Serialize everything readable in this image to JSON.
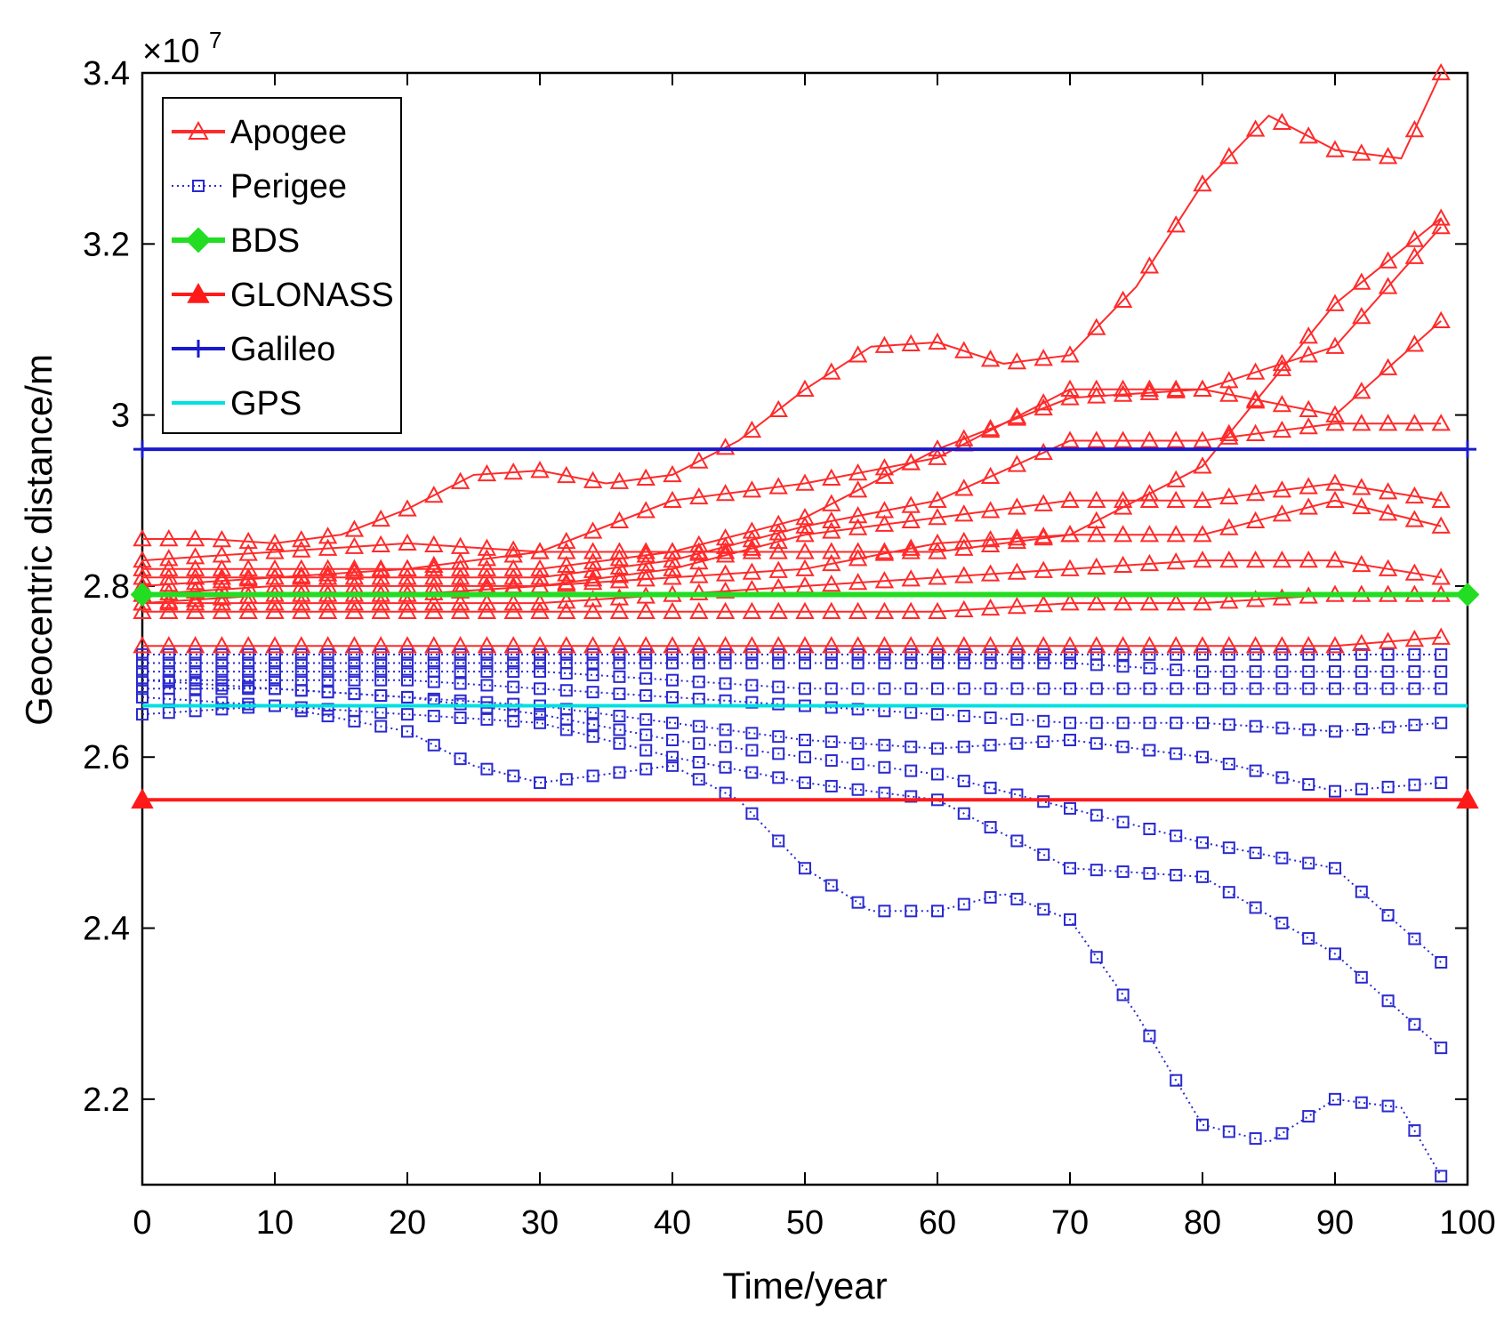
{
  "chart_data": {
    "type": "line",
    "title": "",
    "xlabel": "Time/year",
    "ylabel": "Geocentric distance/m",
    "exponent_label": "×10",
    "exponent_power": "7",
    "xlim": [
      0,
      100
    ],
    "ylim": [
      2.1,
      3.4
    ],
    "xticks": [
      0,
      10,
      20,
      30,
      40,
      50,
      60,
      70,
      80,
      90,
      100
    ],
    "yticks": [
      2.2,
      2.4,
      2.6,
      2.8,
      3,
      3.2,
      3.4
    ],
    "ytick_labels": [
      "2.2",
      "2.4",
      "2.6",
      "2.8",
      "3",
      "3.2",
      "3.4"
    ],
    "legend_position": "top-left",
    "legend": [
      {
        "label": "Apogee",
        "color": "#ff2a2a",
        "marker": "triangle-open",
        "style": "solid"
      },
      {
        "label": "Perigee",
        "color": "#2a2ad0",
        "marker": "square-open",
        "style": "dotted"
      },
      {
        "label": "BDS",
        "color": "#22dd22",
        "marker": "diamond",
        "style": "solid"
      },
      {
        "label": "GLONASS",
        "color": "#ff1a1a",
        "marker": "triangle",
        "style": "solid"
      },
      {
        "label": "Galileo",
        "color": "#1a1acc",
        "marker": "plus",
        "style": "solid"
      },
      {
        "label": "GPS",
        "color": "#00e0e0",
        "marker": "none",
        "style": "solid"
      }
    ],
    "reference_lines": [
      {
        "name": "Galileo",
        "y": 2.96,
        "color": "#1a1acc",
        "marker": "plus"
      },
      {
        "name": "BDS",
        "y": 2.79,
        "color": "#22dd22",
        "marker": "diamond"
      },
      {
        "name": "GLONASS",
        "y": 2.55,
        "color": "#ff1a1a",
        "marker": "triangle"
      },
      {
        "name": "GPS",
        "y": 2.66,
        "color": "#00e0e0",
        "marker": "none"
      }
    ],
    "apogee_series": [
      {
        "x": [
          0,
          5,
          10,
          15,
          20,
          25,
          30,
          35,
          40,
          45,
          50,
          55,
          60,
          65,
          70,
          75,
          80,
          85,
          90,
          95,
          98
        ],
        "y": [
          2.855,
          2.855,
          2.85,
          2.86,
          2.89,
          2.93,
          2.935,
          2.92,
          2.93,
          2.97,
          3.03,
          3.08,
          3.085,
          3.06,
          3.07,
          3.15,
          3.27,
          3.35,
          3.31,
          3.3,
          3.4
        ]
      },
      {
        "x": [
          0,
          10,
          20,
          30,
          40,
          50,
          60,
          70,
          80,
          90,
          98
        ],
        "y": [
          2.83,
          2.84,
          2.85,
          2.84,
          2.84,
          2.84,
          2.84,
          2.86,
          2.94,
          3.13,
          3.23
        ]
      },
      {
        "x": [
          0,
          10,
          20,
          30,
          40,
          50,
          60,
          70,
          80,
          90,
          98
        ],
        "y": [
          2.82,
          2.82,
          2.82,
          2.84,
          2.9,
          2.92,
          2.95,
          3.03,
          3.03,
          3.08,
          3.22
        ]
      },
      {
        "x": [
          0,
          10,
          20,
          30,
          40,
          50,
          60,
          70,
          80,
          90,
          98
        ],
        "y": [
          2.81,
          2.81,
          2.82,
          2.82,
          2.84,
          2.88,
          2.96,
          3.02,
          3.03,
          3.0,
          3.11
        ]
      },
      {
        "x": [
          0,
          10,
          20,
          30,
          40,
          50,
          60,
          70,
          80,
          90,
          98
        ],
        "y": [
          2.8,
          2.81,
          2.81,
          2.81,
          2.83,
          2.87,
          2.9,
          2.97,
          2.97,
          2.99,
          2.99
        ]
      },
      {
        "x": [
          0,
          10,
          20,
          30,
          40,
          50,
          60,
          70,
          80,
          90,
          98
        ],
        "y": [
          2.79,
          2.8,
          2.8,
          2.8,
          2.82,
          2.86,
          2.88,
          2.9,
          2.9,
          2.92,
          2.9
        ]
      },
      {
        "x": [
          0,
          10,
          20,
          30,
          40,
          50,
          60,
          70,
          80,
          90,
          98
        ],
        "y": [
          2.78,
          2.79,
          2.79,
          2.8,
          2.81,
          2.82,
          2.85,
          2.86,
          2.86,
          2.9,
          2.87
        ]
      },
      {
        "x": [
          0,
          10,
          20,
          30,
          40,
          50,
          60,
          70,
          80,
          90,
          98
        ],
        "y": [
          2.78,
          2.78,
          2.78,
          2.78,
          2.79,
          2.8,
          2.81,
          2.82,
          2.83,
          2.83,
          2.81
        ]
      },
      {
        "x": [
          0,
          10,
          20,
          30,
          40,
          50,
          60,
          70,
          80,
          90,
          98
        ],
        "y": [
          2.77,
          2.77,
          2.77,
          2.77,
          2.77,
          2.77,
          2.77,
          2.78,
          2.78,
          2.79,
          2.79
        ]
      },
      {
        "x": [
          0,
          10,
          20,
          30,
          40,
          50,
          60,
          70,
          80,
          90,
          98
        ],
        "y": [
          2.73,
          2.73,
          2.73,
          2.73,
          2.73,
          2.73,
          2.73,
          2.73,
          2.73,
          2.73,
          2.74
        ]
      }
    ],
    "perigee_series": [
      {
        "x": [
          0,
          10,
          20,
          30,
          40,
          50,
          60,
          70,
          80,
          90,
          98
        ],
        "y": [
          2.72,
          2.72,
          2.72,
          2.72,
          2.72,
          2.72,
          2.72,
          2.72,
          2.72,
          2.72,
          2.72
        ]
      },
      {
        "x": [
          0,
          10,
          20,
          30,
          40,
          50,
          60,
          70,
          80,
          90,
          98
        ],
        "y": [
          2.71,
          2.71,
          2.71,
          2.71,
          2.71,
          2.71,
          2.71,
          2.71,
          2.7,
          2.7,
          2.7
        ]
      },
      {
        "x": [
          0,
          10,
          20,
          30,
          40,
          50,
          60,
          70,
          80,
          90,
          98
        ],
        "y": [
          2.7,
          2.7,
          2.7,
          2.7,
          2.69,
          2.68,
          2.68,
          2.68,
          2.68,
          2.68,
          2.68
        ]
      },
      {
        "x": [
          0,
          10,
          20,
          30,
          40,
          50,
          60,
          70,
          80,
          90,
          98
        ],
        "y": [
          2.69,
          2.69,
          2.69,
          2.68,
          2.67,
          2.66,
          2.65,
          2.64,
          2.64,
          2.63,
          2.64
        ]
      },
      {
        "x": [
          0,
          10,
          20,
          30,
          40,
          50,
          60,
          70,
          80,
          90,
          98
        ],
        "y": [
          2.68,
          2.68,
          2.67,
          2.66,
          2.64,
          2.62,
          2.61,
          2.62,
          2.6,
          2.56,
          2.57
        ]
      },
      {
        "x": [
          0,
          10,
          20,
          25,
          30,
          35,
          40,
          45,
          50,
          55,
          60,
          65,
          70,
          75,
          80,
          85,
          90,
          95,
          98
        ],
        "y": [
          2.65,
          2.66,
          2.63,
          2.59,
          2.57,
          2.58,
          2.59,
          2.55,
          2.47,
          2.42,
          2.42,
          2.44,
          2.41,
          2.3,
          2.17,
          2.15,
          2.2,
          2.19,
          2.11
        ]
      },
      {
        "x": [
          0,
          10,
          20,
          30,
          40,
          50,
          60,
          70,
          80,
          90,
          98
        ],
        "y": [
          2.67,
          2.66,
          2.65,
          2.64,
          2.6,
          2.57,
          2.55,
          2.47,
          2.46,
          2.37,
          2.26
        ]
      },
      {
        "x": [
          0,
          10,
          20,
          30,
          40,
          50,
          60,
          70,
          80,
          90,
          98
        ],
        "y": [
          2.69,
          2.68,
          2.67,
          2.65,
          2.62,
          2.6,
          2.58,
          2.54,
          2.5,
          2.47,
          2.36
        ]
      }
    ]
  }
}
